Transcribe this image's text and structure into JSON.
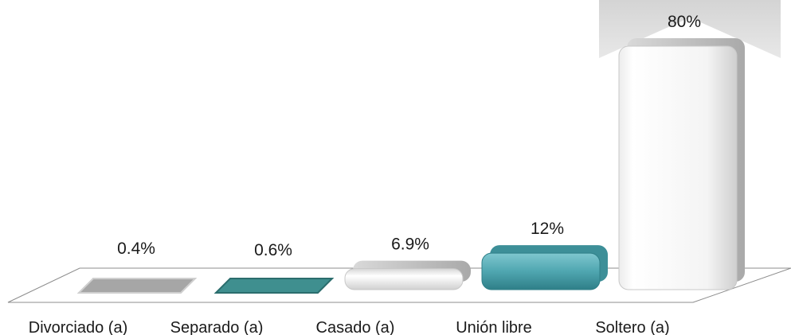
{
  "chart_data": {
    "type": "bar",
    "title": "",
    "xlabel": "",
    "ylabel": "",
    "categories": [
      "Divorciado (a)",
      "Separado (a)",
      "Casado (a)",
      "Unión libre",
      "Soltero (a)"
    ],
    "values": [
      0.4,
      0.6,
      6.9,
      12,
      80
    ],
    "value_labels": [
      "0.4%",
      "0.6%",
      "6.9%",
      "12%",
      "80%"
    ],
    "ylim": [
      0,
      80
    ],
    "grid": false,
    "legend": "none",
    "colors": {
      "divorciado": "#a6a6a6",
      "separado": "#3f8f8f",
      "casado": "#f2f2f2",
      "union_libre": "#4fa6b0",
      "soltero": "#f5f5f5",
      "floor": "#ffffff",
      "floor_edge": "#8c8c8c"
    }
  }
}
